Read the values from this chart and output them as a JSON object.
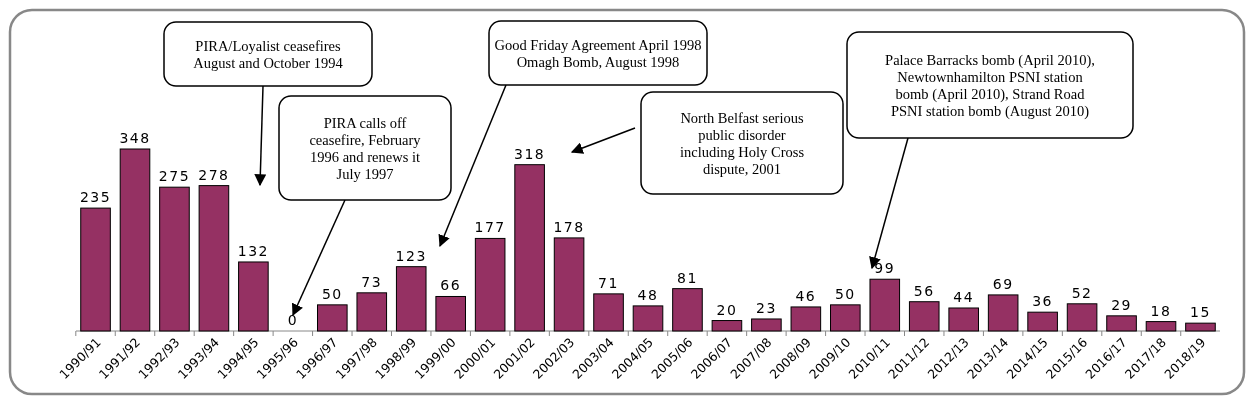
{
  "chart_data": {
    "type": "bar",
    "categories": [
      "1990/91",
      "1991/92",
      "1992/93",
      "1993/94",
      "1994/95",
      "1995/96",
      "1996/97",
      "1997/98",
      "1998/99",
      "1999/00",
      "2000/01",
      "2001/02",
      "2002/03",
      "2003/04",
      "2004/05",
      "2005/06",
      "2006/07",
      "2007/08",
      "2008/09",
      "2009/10",
      "2010/11",
      "2011/12",
      "2012/13",
      "2013/14",
      "2014/15",
      "2015/16",
      "2016/17",
      "2017/18",
      "2018/19"
    ],
    "values": [
      235,
      348,
      275,
      278,
      132,
      0,
      50,
      73,
      123,
      66,
      177,
      318,
      178,
      71,
      48,
      81,
      20,
      23,
      46,
      50,
      99,
      56,
      44,
      69,
      36,
      52,
      29,
      18,
      15
    ],
    "color": "#953163",
    "data_labels": true,
    "annotations": [
      "PIRA/Loyalist ceasefires\nAugust and October 1994",
      "PIRA calls off\nceasefire, February\n1996 and renews it\nJuly 1997",
      "Good Friday Agreement April 1998\nOmagh Bomb, August 1998",
      "North Belfast serious\npublic disorder\nincluding Holy Cross\ndispute, 2001",
      "Palace Barracks bomb (April 2010),\nNewtownhamilton PSNI station\nbomb (April 2010), Strand Road\nPSNI station bomb (August 2010)"
    ]
  }
}
